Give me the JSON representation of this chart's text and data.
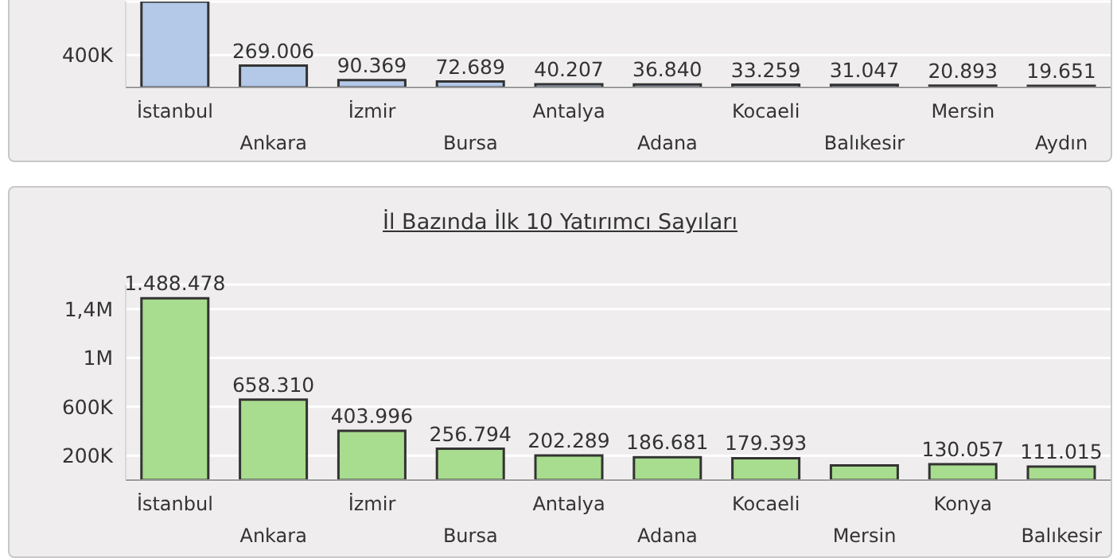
{
  "chart_data": [
    {
      "type": "bar",
      "categories": [
        "İstanbul",
        "Ankara",
        "İzmir",
        "Bursa",
        "Antalya",
        "Adana",
        "Kocaeli",
        "Balıkesir",
        "Mersin",
        "Aydın"
      ],
      "values": [
        1060000,
        269006,
        90369,
        72689,
        40207,
        36840,
        33259,
        31047,
        20893,
        19651
      ],
      "value_labels": [
        null,
        "269.006",
        "90.369",
        "72.689",
        "40.207",
        "36.840",
        "33.259",
        "31.047",
        "20.893",
        "19.651"
      ],
      "color": "#b4c8e8",
      "ylim": [
        0,
        1060000
      ],
      "yticks": [
        {
          "value": 400000,
          "label": "400K"
        }
      ],
      "grid": "y"
    },
    {
      "type": "bar",
      "title": "İl Bazında İlk 10 Yatırımcı Sayıları",
      "categories": [
        "İstanbul",
        "Ankara",
        "İzmir",
        "Bursa",
        "Antalya",
        "Adana",
        "Kocaeli",
        "Mersin",
        "Konya",
        "Balıkesir"
      ],
      "values": [
        1488478,
        658310,
        403996,
        256794,
        202289,
        186681,
        179393,
        120000,
        130057,
        111015
      ],
      "value_labels": [
        "1.488.478",
        "658.310",
        "403.996",
        "256.794",
        "202.289",
        "186.681",
        "179.393",
        null,
        "130.057",
        "111.015"
      ],
      "color": "#a8dc8e",
      "ylim": [
        0,
        1600000
      ],
      "yticks": [
        {
          "value": 200000,
          "label": "200K"
        },
        {
          "value": 600000,
          "label": "600K"
        },
        {
          "value": 1000000,
          "label": "1M"
        },
        {
          "value": 1400000,
          "label": "1,4M"
        }
      ],
      "grid": "y"
    }
  ]
}
